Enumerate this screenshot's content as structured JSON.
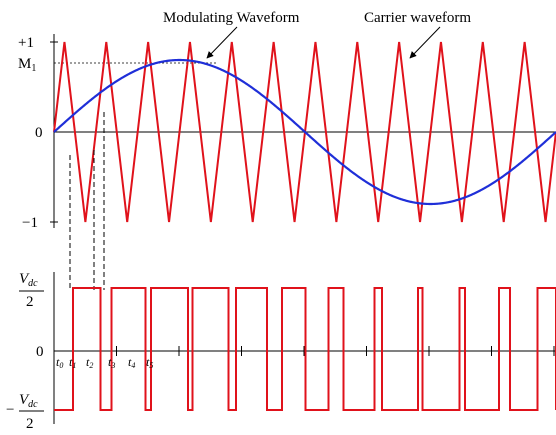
{
  "annotations": {
    "modulating": "Modulating Waveform",
    "carrier": "Carrier waveform"
  },
  "top_axis": {
    "plus_one": "+1",
    "m1": "M",
    "m1_sub": "1",
    "zero": "0",
    "minus_one": "−1"
  },
  "bottom_axis": {
    "zero": "0",
    "vdc_numer": "V",
    "vdc_sub": "dc",
    "denominator": "2",
    "minus": "−"
  },
  "time_labels": [
    {
      "t": "t",
      "sub": "0"
    },
    {
      "t": "t",
      "sub": "1"
    },
    {
      "t": "t",
      "sub": "2"
    },
    {
      "t": "t",
      "sub": "3"
    },
    {
      "t": "t",
      "sub": "4"
    },
    {
      "t": "t",
      "sub": "5"
    }
  ],
  "signals": {
    "modulation_index": 0.8,
    "carrier_periods": 12,
    "modulating_periods": 1,
    "carrier_color": "#e0121b",
    "modulating_color": "#1f2fd8",
    "axis_color": "#000000"
  }
}
